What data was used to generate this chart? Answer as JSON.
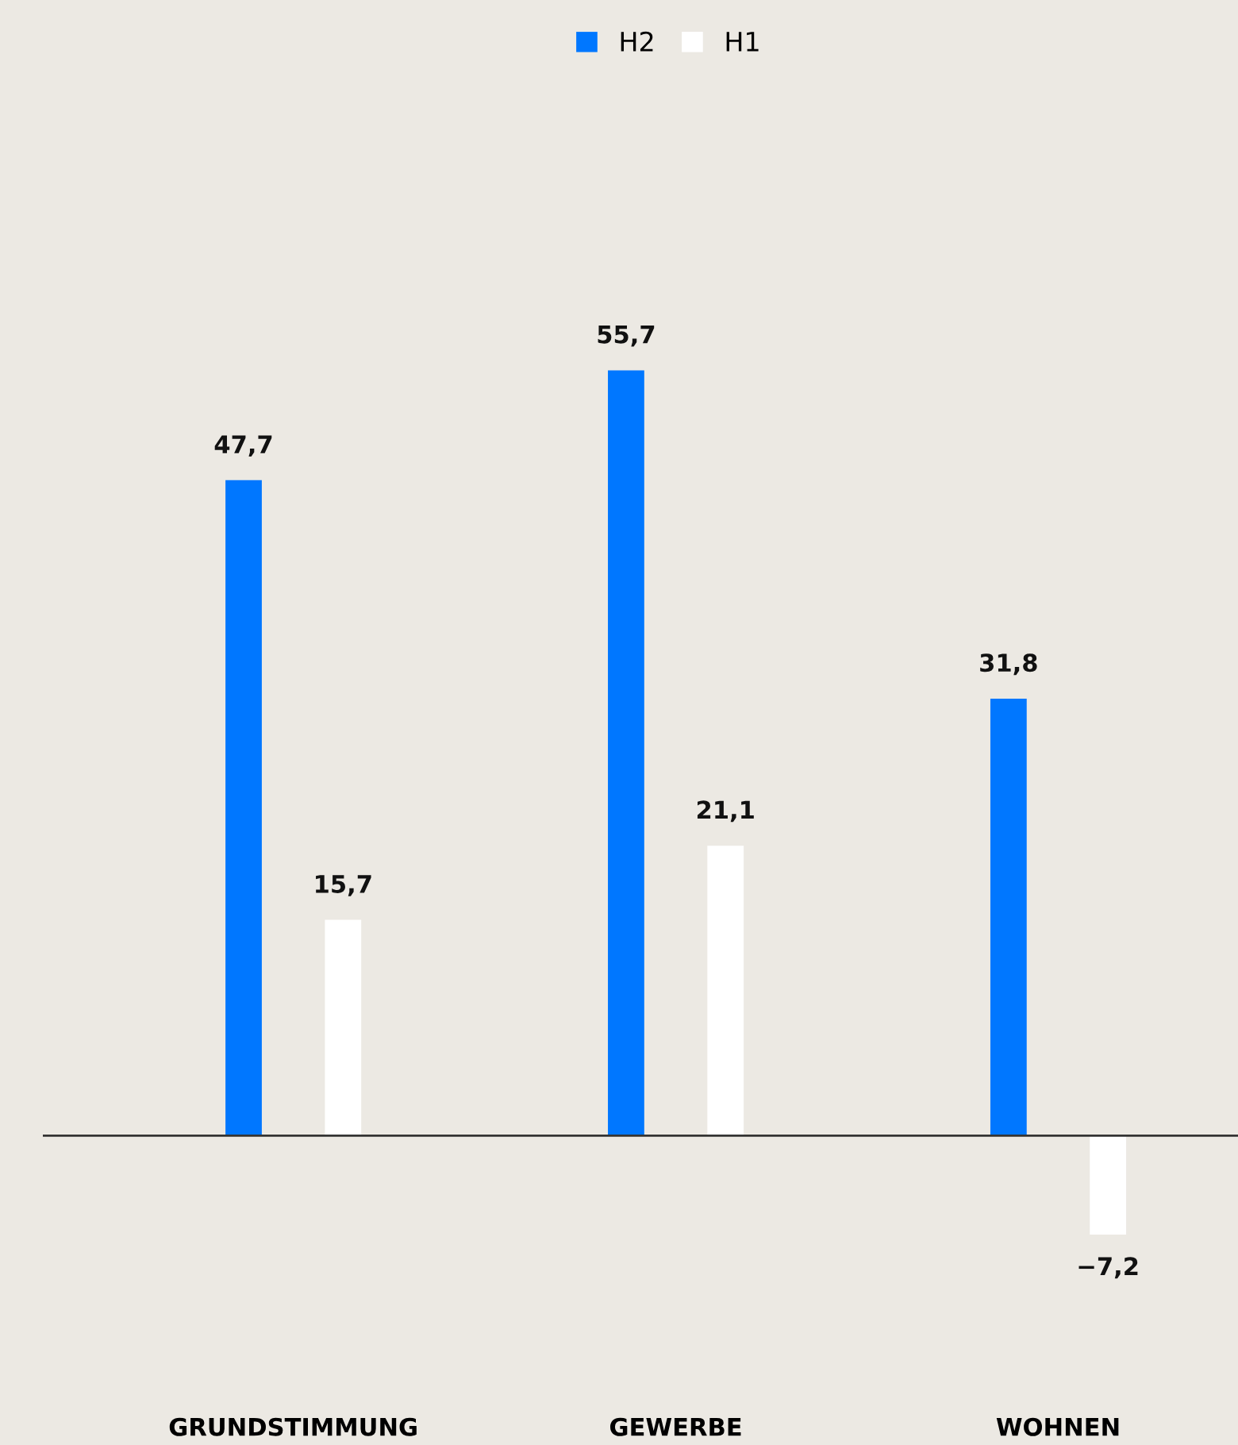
{
  "chart_data": {
    "type": "bar",
    "categories": [
      "GRUNDSTIMMUNG",
      "GEWERBE",
      "WOHNEN"
    ],
    "series": [
      {
        "name": "H2",
        "color": "#0077ff",
        "values": [
          47.7,
          55.7,
          31.8
        ],
        "value_labels": [
          "47,7",
          "55,7",
          "31,8"
        ]
      },
      {
        "name": "H1",
        "color": "#ffffff",
        "values": [
          15.7,
          21.1,
          -7.2
        ],
        "value_labels": [
          "15,7",
          "21,1",
          "−7,2"
        ]
      }
    ],
    "relative": false,
    "legend": "top",
    "grid": false
  }
}
